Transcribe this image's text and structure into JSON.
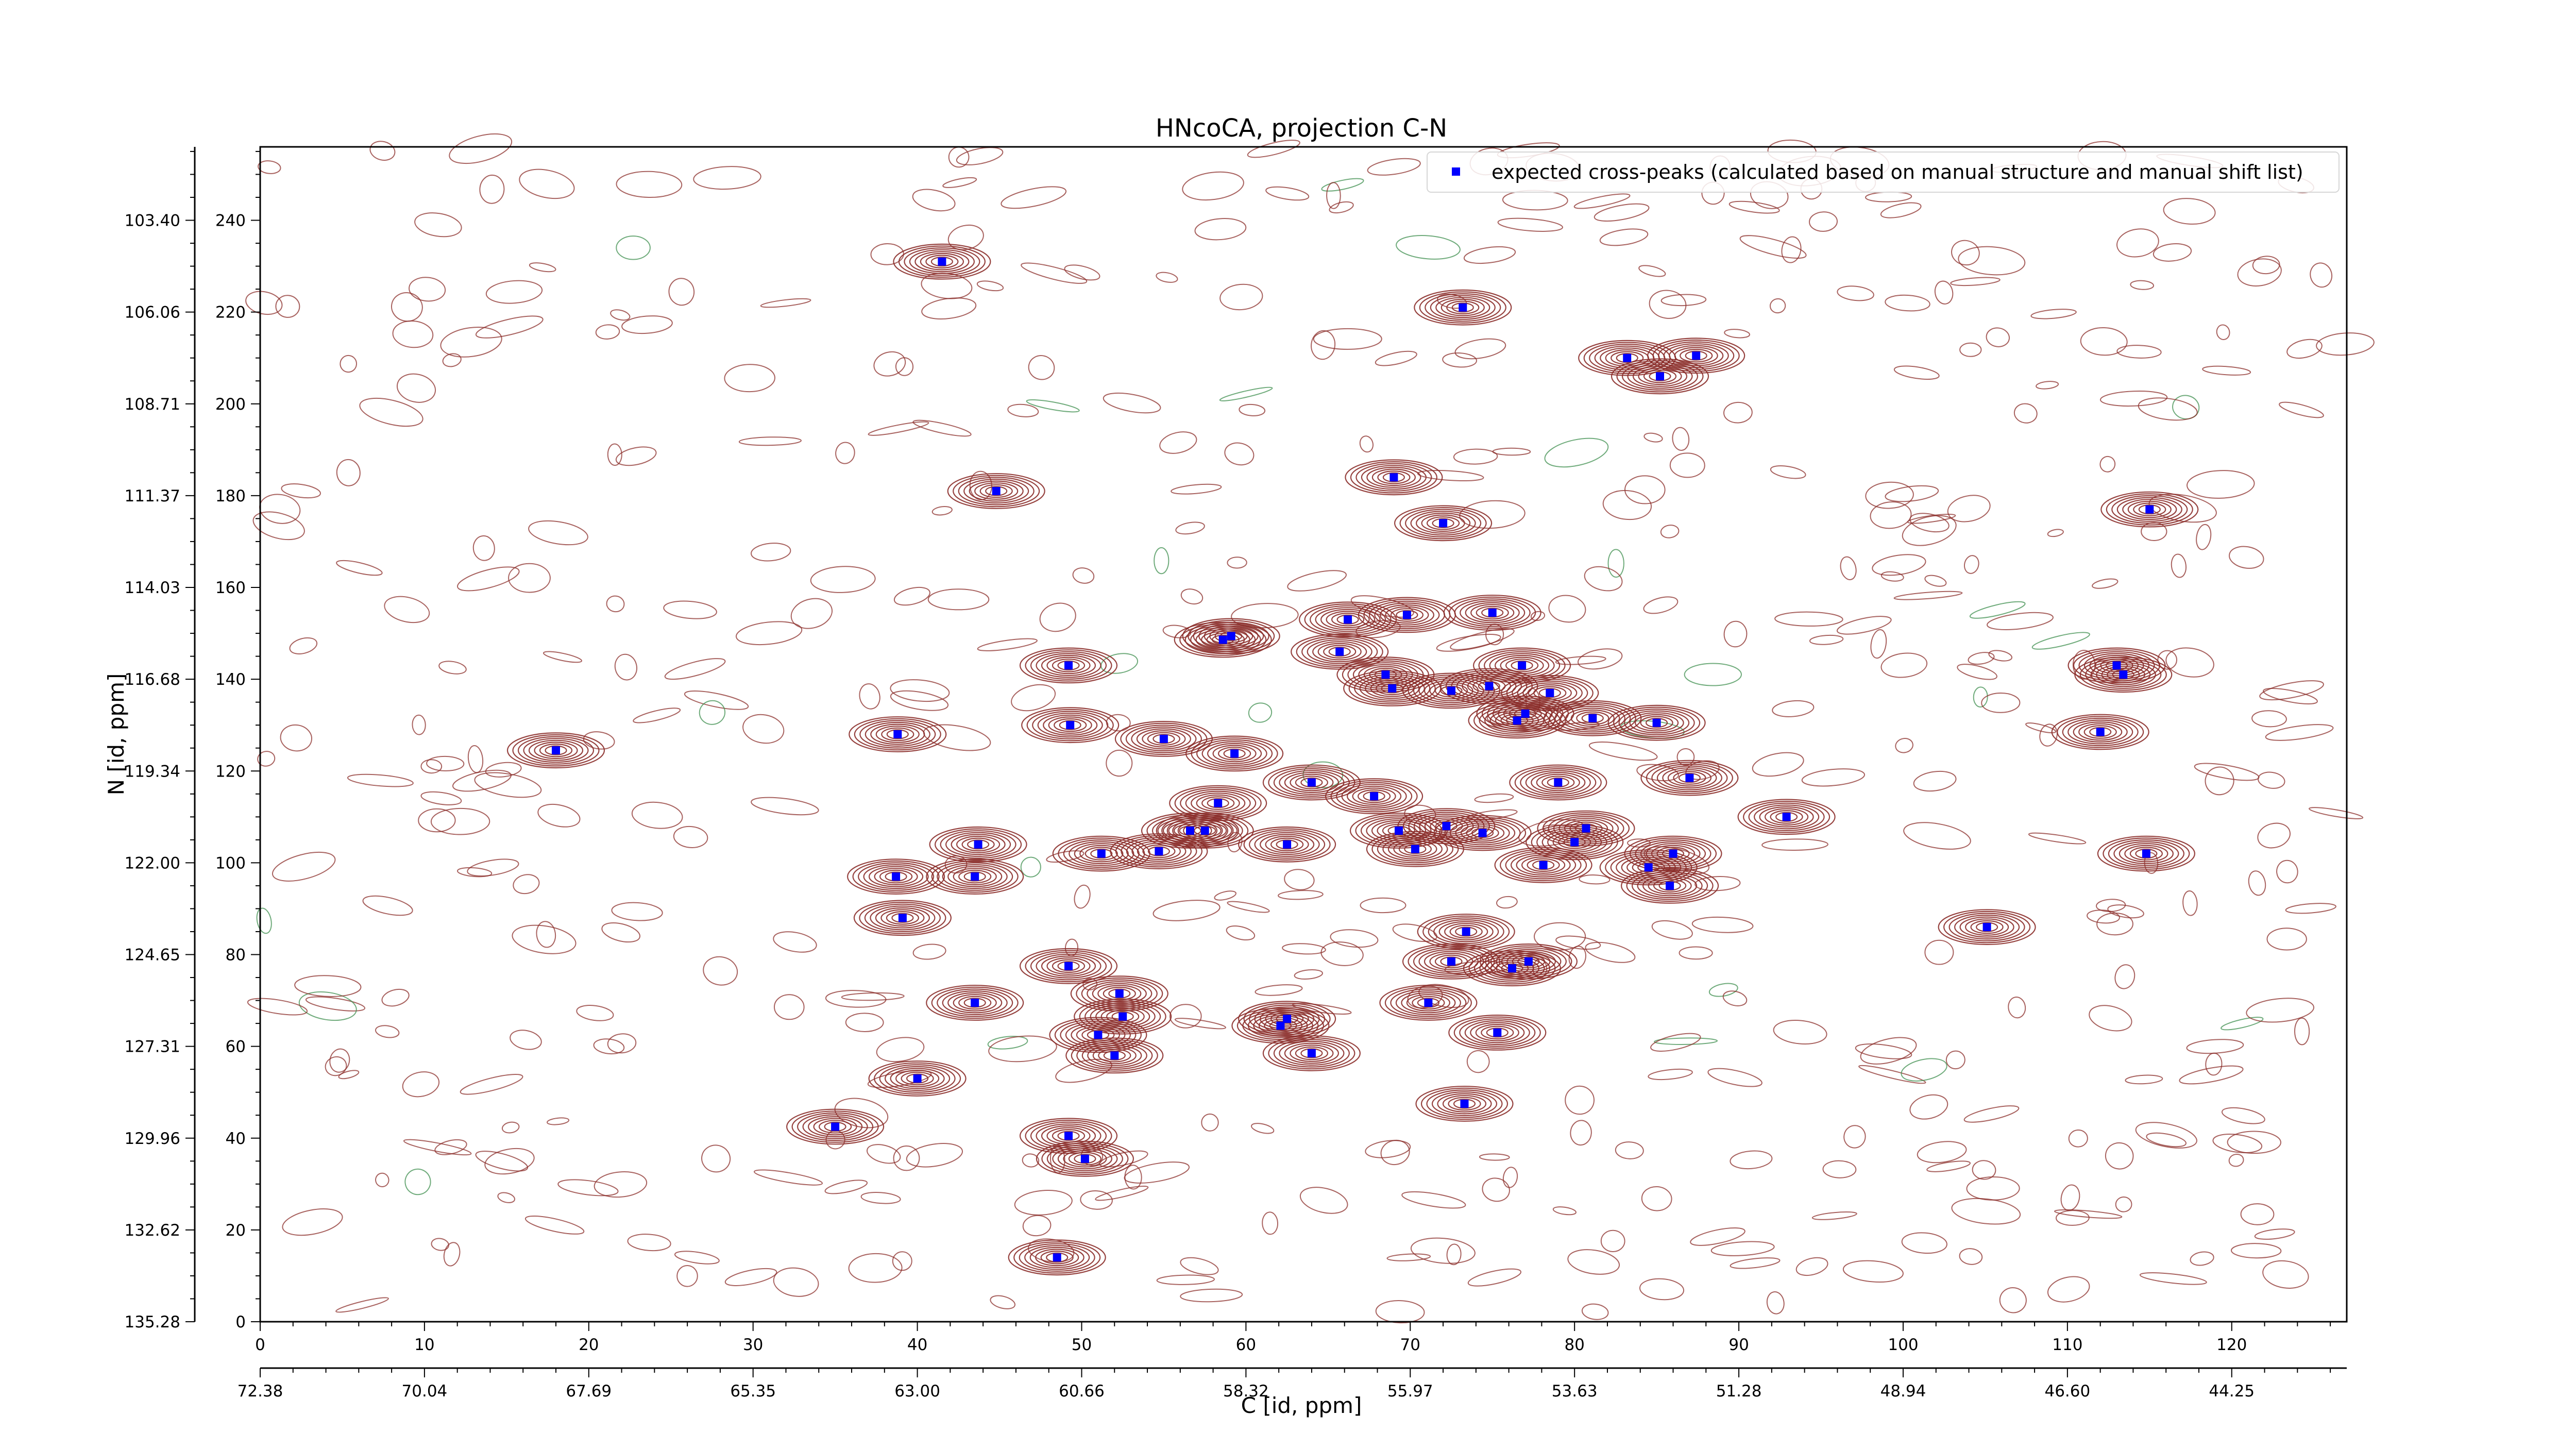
{
  "chart_data": {
    "type": "scatter",
    "title": "HNcoCA, projection C-N",
    "xlabel": "C [id, ppm]",
    "ylabel": "N [id, ppm]",
    "xlim": [
      0,
      127
    ],
    "ylim": [
      0,
      256
    ],
    "x_ticks": [
      "0",
      "10",
      "20",
      "30",
      "40",
      "50",
      "60",
      "70",
      "80",
      "90",
      "100",
      "110",
      "120"
    ],
    "x_ppm_ticks": [
      "72.38",
      "70.04",
      "67.69",
      "65.35",
      "63.00",
      "60.66",
      "58.32",
      "55.97",
      "53.63",
      "51.28",
      "48.94",
      "46.60",
      "44.25"
    ],
    "y_ticks": [
      "0",
      "20",
      "40",
      "60",
      "80",
      "100",
      "120",
      "140",
      "160",
      "180",
      "200",
      "220",
      "240"
    ],
    "y_ppm_ticks": [
      "135.28",
      "132.62",
      "129.96",
      "127.31",
      "124.65",
      "122.00",
      "119.34",
      "116.68",
      "114.03",
      "111.37",
      "108.71",
      "106.06",
      "103.40"
    ],
    "legend": {
      "label": "expected cross-peaks (calculated based on manual structure and manual shift list)",
      "position": "top-right"
    },
    "colors": {
      "contour": "#8b2e2a",
      "negative_contour": "#3f8f4f",
      "marker": "#0000ff"
    },
    "series": [
      {
        "name": "expected cross-peaks (calculated based on manual structure and manual shift list)",
        "points": [
          [
            41.5,
            231
          ],
          [
            73.2,
            221
          ],
          [
            83.2,
            210
          ],
          [
            87.4,
            210.5
          ],
          [
            85.2,
            206
          ],
          [
            44.8,
            181
          ],
          [
            69.0,
            184
          ],
          [
            72.0,
            174
          ],
          [
            115.0,
            177
          ],
          [
            66.2,
            153
          ],
          [
            69.8,
            154
          ],
          [
            75.0,
            154.5
          ],
          [
            58.6,
            148.6
          ],
          [
            59.1,
            149.4
          ],
          [
            65.7,
            146
          ],
          [
            49.2,
            143
          ],
          [
            68.5,
            141
          ],
          [
            68.9,
            138
          ],
          [
            72.5,
            137.5
          ],
          [
            74.8,
            138.5
          ],
          [
            76.8,
            143
          ],
          [
            78.5,
            137
          ],
          [
            77.0,
            132.5
          ],
          [
            76.5,
            131
          ],
          [
            81.1,
            131.5
          ],
          [
            85.0,
            130.5
          ],
          [
            49.3,
            130
          ],
          [
            38.8,
            128
          ],
          [
            55.0,
            127
          ],
          [
            18.0,
            124.5
          ],
          [
            59.3,
            123.8
          ],
          [
            64.0,
            117.5
          ],
          [
            67.8,
            114.5
          ],
          [
            79.0,
            117.5
          ],
          [
            87.0,
            118.5
          ],
          [
            113.0,
            143
          ],
          [
            113.4,
            141
          ],
          [
            112.0,
            128.5
          ],
          [
            92.9,
            110
          ],
          [
            58.3,
            113
          ],
          [
            57.5,
            107
          ],
          [
            56.6,
            107
          ],
          [
            43.7,
            104
          ],
          [
            62.5,
            104
          ],
          [
            51.2,
            102
          ],
          [
            54.7,
            102.5
          ],
          [
            72.2,
            108
          ],
          [
            74.4,
            106.5
          ],
          [
            69.3,
            107
          ],
          [
            70.3,
            103
          ],
          [
            80.7,
            107.5
          ],
          [
            80.0,
            104.5
          ],
          [
            78.1,
            99.5
          ],
          [
            84.5,
            99
          ],
          [
            86.0,
            102
          ],
          [
            85.8,
            95
          ],
          [
            38.7,
            97
          ],
          [
            43.5,
            97
          ],
          [
            39.1,
            88
          ],
          [
            114.8,
            102
          ],
          [
            105.1,
            86
          ],
          [
            73.4,
            85
          ],
          [
            72.5,
            78.5
          ],
          [
            76.2,
            77
          ],
          [
            77.2,
            78.5
          ],
          [
            49.2,
            77.5
          ],
          [
            43.5,
            69.5
          ],
          [
            52.3,
            71.5
          ],
          [
            71.1,
            69.5
          ],
          [
            52.5,
            66.5
          ],
          [
            62.5,
            66
          ],
          [
            62.1,
            64.5
          ],
          [
            75.3,
            63
          ],
          [
            51.0,
            62.5
          ],
          [
            52.0,
            58
          ],
          [
            64.0,
            58.5
          ],
          [
            40.0,
            53
          ],
          [
            73.3,
            47.5
          ],
          [
            35.0,
            42.5
          ],
          [
            49.2,
            40.5
          ],
          [
            50.2,
            35.5
          ],
          [
            48.5,
            14
          ]
        ]
      }
    ]
  }
}
